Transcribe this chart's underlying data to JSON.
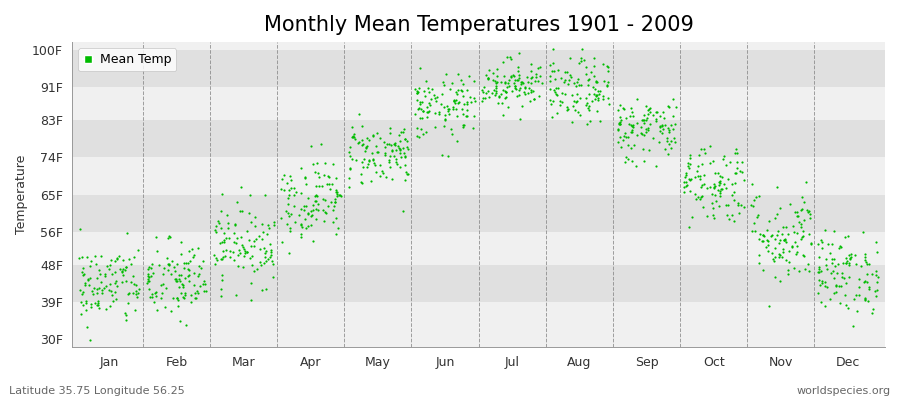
{
  "title": "Monthly Mean Temperatures 1901 - 2009",
  "ylabel": "Temperature",
  "xlabel_labels": [
    "Jan",
    "Feb",
    "Mar",
    "Apr",
    "May",
    "Jun",
    "Jul",
    "Aug",
    "Sep",
    "Oct",
    "Nov",
    "Dec"
  ],
  "ytick_labels": [
    "30F",
    "39F",
    "48F",
    "56F",
    "65F",
    "74F",
    "83F",
    "91F",
    "100F"
  ],
  "ytick_values": [
    30,
    39,
    48,
    56,
    65,
    74,
    83,
    91,
    100
  ],
  "ylim": [
    28,
    102
  ],
  "dot_color": "#00bb00",
  "dot_size": 2.5,
  "bg_color": "#ffffff",
  "plot_bg_light": "#f0f0f0",
  "plot_bg_dark": "#e0e0e0",
  "grid_color": "#888888",
  "legend_label": "Mean Temp",
  "footer_left": "Latitude 35.75 Longitude 56.25",
  "footer_right": "worldspecies.org",
  "title_fontsize": 15,
  "axis_fontsize": 9,
  "footer_fontsize": 8,
  "monthly_means_f": [
    43,
    44,
    53,
    64,
    75,
    86,
    92,
    90,
    81,
    68,
    55,
    46
  ],
  "monthly_stds_f": [
    5,
    5,
    5,
    5,
    4,
    4,
    3,
    4,
    4,
    5,
    6,
    5
  ],
  "n_years": 109
}
